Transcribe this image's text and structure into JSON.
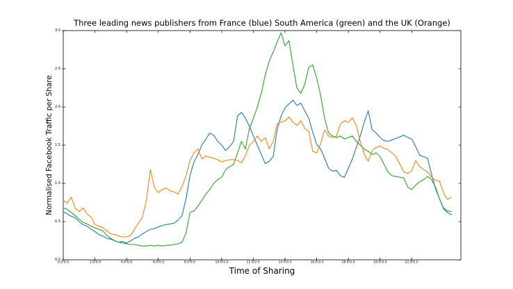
{
  "chart_data": {
    "type": "line",
    "title": "Three leading news publishers from France (blue) South America (green) and the UK (Orange)",
    "xlabel": "Time of Sharing",
    "ylabel": "Normalised Facebook Traffic per Share",
    "xlim": [
      0,
      25.1
    ],
    "ylim": [
      0.0,
      3.0
    ],
    "grid": false,
    "legend": "none",
    "x_unit": "hours since 00:00",
    "x_start": 0,
    "x_step": 0.25,
    "frame_color": "#000000",
    "background": "#ffffff",
    "xticks": {
      "values": [
        0,
        2,
        4,
        6,
        8,
        10,
        12,
        14,
        16,
        18,
        20,
        22
      ],
      "labels": [
        "0.0:0.0",
        "2.0:0.0",
        "4.0:0.0",
        "6.0:0.0",
        "8.0:0.0",
        "10.0:0.0",
        "12.0:0.0",
        "14.0:0.0",
        "16.0:0.0",
        "18.0:0.0",
        "20.0:0.0",
        "22.0:0.0"
      ]
    },
    "yticks": {
      "values": [
        0.0,
        0.5,
        1.0,
        1.5,
        2.0,
        2.5,
        3.0
      ],
      "labels": [
        "0.0",
        "0.5",
        "1.0",
        "1.5",
        "2.0",
        "2.5",
        "3.0"
      ]
    },
    "series": [
      {
        "name": "France",
        "color": "#1f77b4",
        "values": [
          0.63,
          0.6,
          0.57,
          0.55,
          0.5,
          0.46,
          0.44,
          0.4,
          0.37,
          0.33,
          0.31,
          0.28,
          0.27,
          0.25,
          0.23,
          0.24,
          0.22,
          0.25,
          0.28,
          0.3,
          0.34,
          0.37,
          0.4,
          0.41,
          0.43,
          0.45,
          0.46,
          0.47,
          0.48,
          0.52,
          0.58,
          0.8,
          1.1,
          1.28,
          1.38,
          1.5,
          1.58,
          1.66,
          1.63,
          1.55,
          1.5,
          1.43,
          1.48,
          1.55,
          1.88,
          1.93,
          1.85,
          1.75,
          1.62,
          1.5,
          1.38,
          1.26,
          1.29,
          1.35,
          1.7,
          1.88,
          1.99,
          2.04,
          2.09,
          2.02,
          2.05,
          1.95,
          1.85,
          1.67,
          1.51,
          1.45,
          1.33,
          1.2,
          1.16,
          1.17,
          1.1,
          1.08,
          1.2,
          1.32,
          1.47,
          1.62,
          1.8,
          1.95,
          1.7,
          1.66,
          1.6,
          1.56,
          1.55,
          1.57,
          1.59,
          1.61,
          1.63,
          1.6,
          1.58,
          1.48,
          1.37,
          1.35,
          1.33,
          1.12,
          0.93,
          0.8,
          0.67,
          0.62,
          0.59
        ]
      },
      {
        "name": "South America",
        "color": "#2ca02c",
        "values": [
          0.68,
          0.66,
          0.62,
          0.58,
          0.53,
          0.49,
          0.47,
          0.44,
          0.42,
          0.4,
          0.38,
          0.32,
          0.28,
          0.25,
          0.23,
          0.22,
          0.21,
          0.2,
          0.2,
          0.19,
          0.18,
          0.18,
          0.19,
          0.18,
          0.19,
          0.18,
          0.19,
          0.19,
          0.2,
          0.21,
          0.23,
          0.35,
          0.62,
          0.64,
          0.7,
          0.78,
          0.86,
          0.92,
          1.0,
          1.05,
          1.08,
          1.18,
          1.22,
          1.25,
          1.4,
          1.55,
          1.45,
          1.72,
          1.85,
          2.0,
          2.18,
          2.42,
          2.6,
          2.72,
          2.85,
          2.97,
          2.8,
          2.87,
          2.55,
          2.25,
          2.18,
          2.3,
          2.52,
          2.55,
          2.38,
          2.15,
          1.85,
          1.66,
          1.62,
          1.6,
          1.62,
          1.58,
          1.6,
          1.62,
          1.55,
          1.5,
          1.45,
          1.42,
          1.38,
          1.4,
          1.35,
          1.25,
          1.15,
          1.1,
          1.09,
          1.08,
          1.07,
          0.95,
          0.92,
          0.98,
          1.02,
          1.05,
          1.09,
          1.05,
          0.95,
          0.8,
          0.68,
          0.64,
          0.63
        ]
      },
      {
        "name": "UK",
        "color": "#ff7f0e",
        "values": [
          0.78,
          0.74,
          0.82,
          0.68,
          0.63,
          0.68,
          0.6,
          0.56,
          0.46,
          0.44,
          0.42,
          0.38,
          0.34,
          0.33,
          0.31,
          0.3,
          0.3,
          0.32,
          0.4,
          0.48,
          0.56,
          0.78,
          1.18,
          0.95,
          0.88,
          0.92,
          0.94,
          0.9,
          0.89,
          0.86,
          0.96,
          1.1,
          1.3,
          1.4,
          1.45,
          1.32,
          1.36,
          1.34,
          1.33,
          1.31,
          1.28,
          1.3,
          1.31,
          1.31,
          1.3,
          1.27,
          1.36,
          1.5,
          1.55,
          1.62,
          1.55,
          1.6,
          1.45,
          1.55,
          1.78,
          1.8,
          1.82,
          1.87,
          1.8,
          1.76,
          1.82,
          1.72,
          1.68,
          1.42,
          1.4,
          1.52,
          1.7,
          1.62,
          1.6,
          1.62,
          1.78,
          1.82,
          1.8,
          1.86,
          1.76,
          1.55,
          1.38,
          1.29,
          1.43,
          1.47,
          1.49,
          1.46,
          1.44,
          1.4,
          1.35,
          1.25,
          1.15,
          1.13,
          1.17,
          1.3,
          1.22,
          1.18,
          1.15,
          1.08,
          1.04,
          1.03,
          0.88,
          0.79,
          0.82
        ]
      }
    ]
  }
}
